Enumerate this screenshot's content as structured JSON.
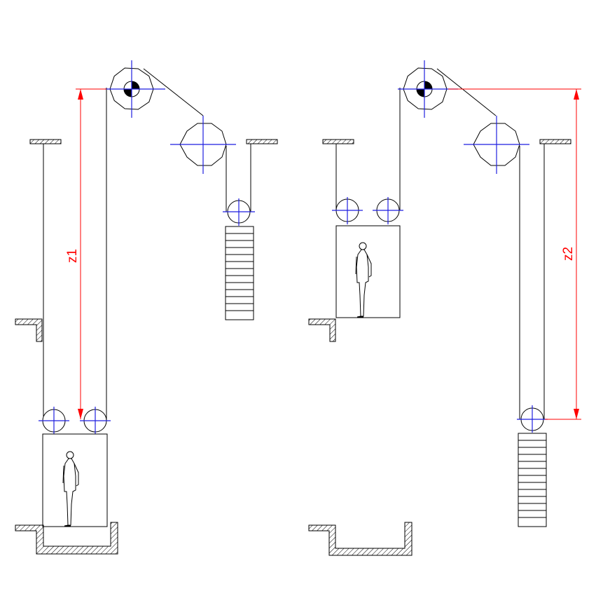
{
  "dimensions": {
    "z1": "z1",
    "z2": "z2"
  },
  "colors": {
    "rope": "#000000",
    "centerlines": "#1f1fe0",
    "dimension": "#ff0000"
  }
}
